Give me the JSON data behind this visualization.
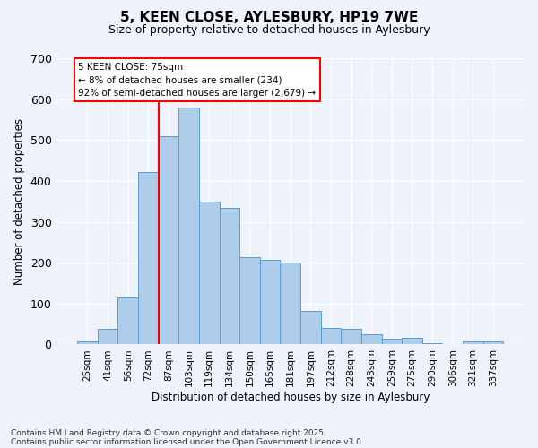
{
  "title_line1": "5, KEEN CLOSE, AYLESBURY, HP19 7WE",
  "title_line2": "Size of property relative to detached houses in Aylesbury",
  "xlabel": "Distribution of detached houses by size in Aylesbury",
  "ylabel": "Number of detached properties",
  "bar_labels": [
    "25sqm",
    "41sqm",
    "56sqm",
    "72sqm",
    "87sqm",
    "103sqm",
    "119sqm",
    "134sqm",
    "150sqm",
    "165sqm",
    "181sqm",
    "197sqm",
    "212sqm",
    "228sqm",
    "243sqm",
    "259sqm",
    "275sqm",
    "290sqm",
    "306sqm",
    "321sqm",
    "337sqm"
  ],
  "bar_values": [
    8,
    38,
    115,
    422,
    510,
    580,
    350,
    335,
    213,
    208,
    200,
    82,
    40,
    38,
    25,
    15,
    16,
    3,
    0,
    7,
    7
  ],
  "bar_color": "#aecde8",
  "bar_edge_color": "#5b9bd5",
  "vline_color": "red",
  "vline_index": 3,
  "annotation_text": "5 KEEN CLOSE: 75sqm\n← 8% of detached houses are smaller (234)\n92% of semi-detached houses are larger (2,679) →",
  "annotation_box_color": "white",
  "annotation_box_edge": "red",
  "ylim": [
    0,
    700
  ],
  "yticks": [
    0,
    100,
    200,
    300,
    400,
    500,
    600,
    700
  ],
  "background_color": "#edf2fb",
  "grid_color": "white",
  "footnote_line1": "Contains HM Land Registry data © Crown copyright and database right 2025.",
  "footnote_line2": "Contains public sector information licensed under the Open Government Licence v3.0.",
  "title_fontsize": 11,
  "subtitle_fontsize": 9,
  "bar_label_fontsize": 7.5,
  "ylabel_fontsize": 8.5,
  "xlabel_fontsize": 8.5,
  "annotation_fontsize": 7.5,
  "footnote_fontsize": 6.5
}
